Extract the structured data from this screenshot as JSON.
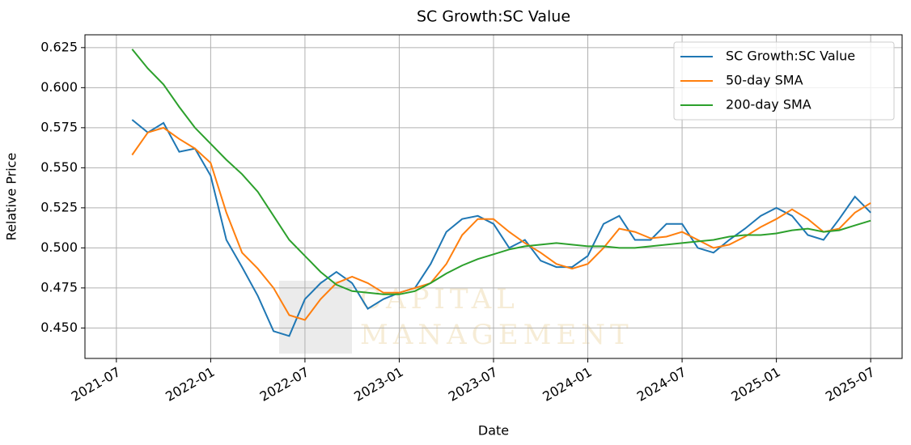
{
  "chart_data": {
    "type": "line",
    "title": "SC Growth:SC Value",
    "xlabel": "Date",
    "ylabel": "Relative Price",
    "watermark": [
      "CAPITAL",
      "MANAGEMENT"
    ],
    "x": [
      "2021-08",
      "2021-09",
      "2021-10",
      "2021-11",
      "2021-12",
      "2022-01",
      "2022-02",
      "2022-03",
      "2022-04",
      "2022-05",
      "2022-06",
      "2022-07",
      "2022-08",
      "2022-09",
      "2022-10",
      "2022-11",
      "2022-12",
      "2023-01",
      "2023-02",
      "2023-03",
      "2023-04",
      "2023-05",
      "2023-06",
      "2023-07",
      "2023-08",
      "2023-09",
      "2023-10",
      "2023-11",
      "2023-12",
      "2024-01",
      "2024-02",
      "2024-03",
      "2024-04",
      "2024-05",
      "2024-06",
      "2024-07",
      "2024-08",
      "2024-09",
      "2024-10",
      "2024-11",
      "2024-12",
      "2025-01",
      "2025-02",
      "2025-03",
      "2025-04",
      "2025-05",
      "2025-06",
      "2025-07"
    ],
    "series": [
      {
        "name": "SC Growth:SC Value",
        "color": "#1f77b4",
        "values": [
          0.58,
          0.572,
          0.578,
          0.56,
          0.562,
          0.545,
          0.505,
          0.488,
          0.47,
          0.448,
          0.445,
          0.468,
          0.478,
          0.485,
          0.478,
          0.462,
          0.468,
          0.472,
          0.475,
          0.49,
          0.51,
          0.518,
          0.52,
          0.515,
          0.5,
          0.505,
          0.492,
          0.488,
          0.488,
          0.495,
          0.515,
          0.52,
          0.505,
          0.505,
          0.515,
          0.515,
          0.5,
          0.497,
          0.505,
          0.512,
          0.52,
          0.525,
          0.52,
          0.508,
          0.505,
          0.518,
          0.532,
          0.522
        ]
      },
      {
        "name": "50-day SMA",
        "color": "#ff7f0e",
        "values": [
          0.558,
          0.572,
          0.575,
          0.568,
          0.562,
          0.553,
          0.522,
          0.497,
          0.487,
          0.475,
          0.458,
          0.455,
          0.468,
          0.478,
          0.482,
          0.478,
          0.472,
          0.472,
          0.475,
          0.478,
          0.49,
          0.508,
          0.518,
          0.518,
          0.51,
          0.503,
          0.497,
          0.49,
          0.487,
          0.49,
          0.5,
          0.512,
          0.51,
          0.506,
          0.507,
          0.51,
          0.505,
          0.5,
          0.502,
          0.507,
          0.513,
          0.518,
          0.524,
          0.518,
          0.51,
          0.512,
          0.522,
          0.528
        ]
      },
      {
        "name": "200-day SMA",
        "color": "#2ca02c",
        "values": [
          0.624,
          0.612,
          0.602,
          0.588,
          0.575,
          0.565,
          0.555,
          0.546,
          0.535,
          0.52,
          0.505,
          0.495,
          0.485,
          0.477,
          0.473,
          0.472,
          0.471,
          0.471,
          0.473,
          0.478,
          0.484,
          0.489,
          0.493,
          0.496,
          0.499,
          0.501,
          0.502,
          0.503,
          0.502,
          0.501,
          0.501,
          0.5,
          0.5,
          0.501,
          0.502,
          0.503,
          0.504,
          0.505,
          0.507,
          0.508,
          0.508,
          0.509,
          0.511,
          0.512,
          0.51,
          0.511,
          0.514,
          0.517
        ]
      }
    ],
    "xlim": [
      "2021-05",
      "2025-09"
    ],
    "xticks": [
      "2021-07",
      "2022-01",
      "2022-07",
      "2023-01",
      "2023-07",
      "2024-01",
      "2024-07",
      "2025-01",
      "2025-07"
    ],
    "ylim": [
      0.431,
      0.633
    ],
    "yticks": [
      {
        "value": 0.45,
        "label": "0.450"
      },
      0.475,
      {
        "value": 0.5,
        "label": "0.500"
      },
      0.525,
      {
        "value": 0.55,
        "label": "0.550"
      },
      0.575,
      {
        "value": 0.6,
        "label": "0.600"
      },
      0.625
    ],
    "grid": true,
    "legend": "upper right"
  }
}
